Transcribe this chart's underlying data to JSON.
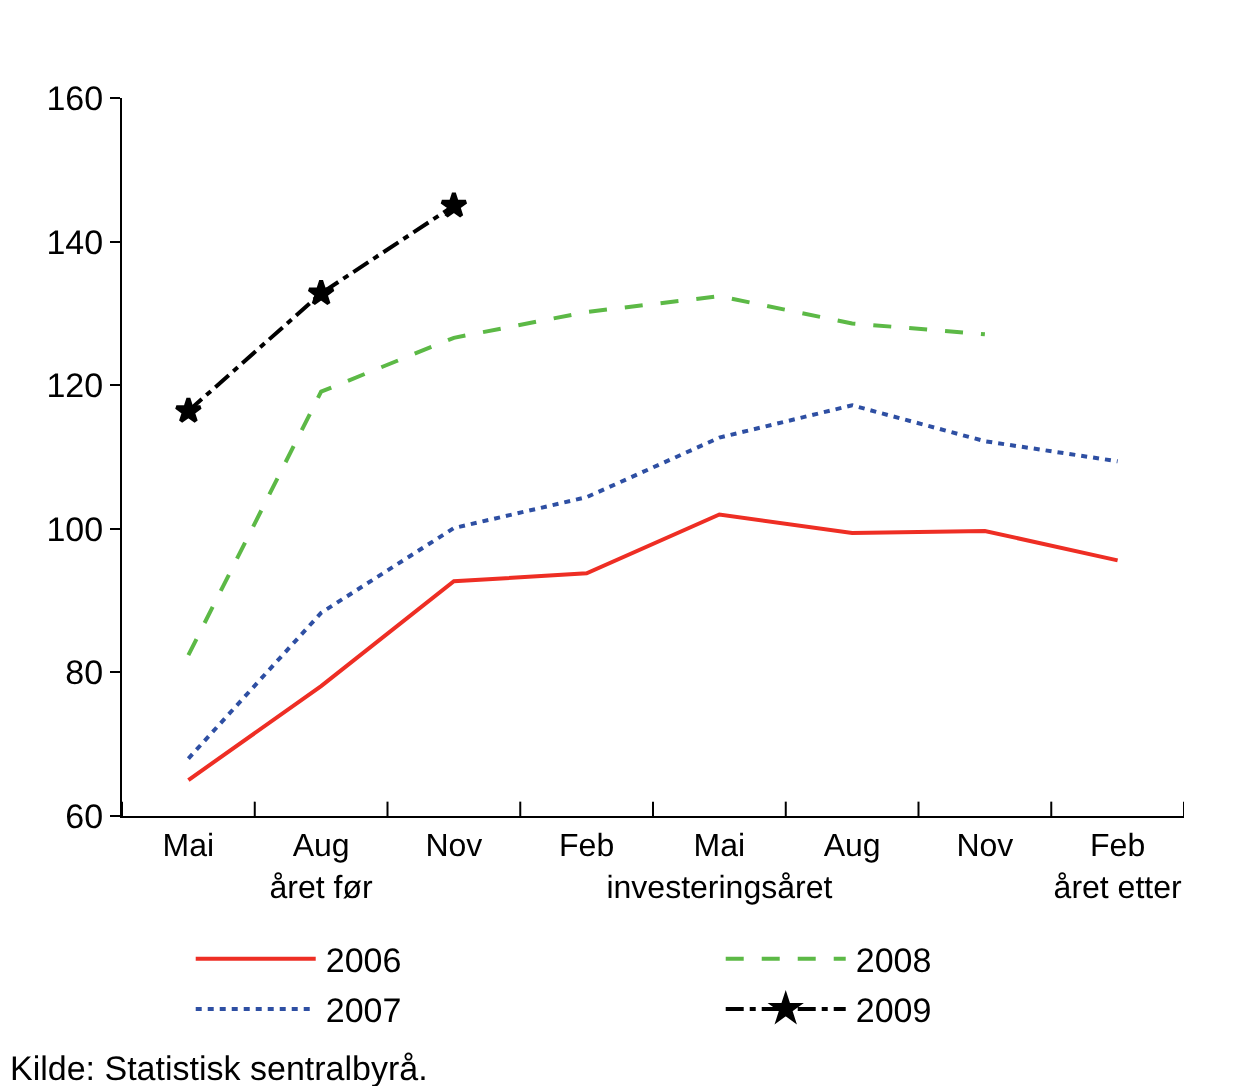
{
  "chart_data": {
    "type": "line",
    "categories": [
      "Mai",
      "Aug\nåret før",
      "Nov",
      "Feb",
      "Mai\ninvesteringsåret",
      "Aug",
      "Nov",
      "Feb\nåret etter"
    ],
    "series": [
      {
        "name": "2006",
        "color": "#ee2e24",
        "line_style": "solid",
        "values": [
          65,
          78.1,
          92.7,
          93.8,
          102,
          99.4,
          99.7,
          95.6
        ]
      },
      {
        "name": "2007",
        "color": "#2e4fa3",
        "line_style": "dotted",
        "values": [
          68,
          88.3,
          100.1,
          104.4,
          112.7,
          117.2,
          112.2,
          109.4
        ]
      },
      {
        "name": "2008",
        "color": "#5cb946",
        "line_style": "dashed",
        "values": [
          82.4,
          119.1,
          126.6,
          130.2,
          132.4,
          128.6,
          127.1,
          null
        ]
      },
      {
        "name": "2009",
        "color": "#000000",
        "line_style": "dashdot",
        "marker": "star",
        "values": [
          116.4,
          132.8,
          145,
          null,
          null,
          null,
          null,
          null
        ]
      }
    ],
    "ylim": [
      60,
      160
    ],
    "yticks": [
      60,
      80,
      100,
      120,
      140,
      160
    ],
    "legend": "bottom",
    "annotations": [
      "Kilde: Statistisk sentralbyrå."
    ]
  }
}
